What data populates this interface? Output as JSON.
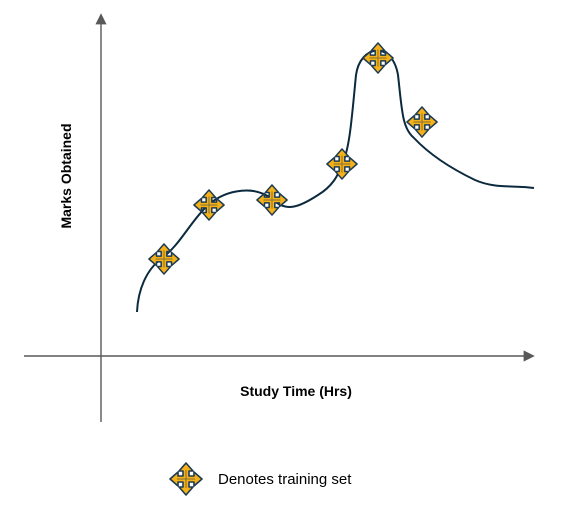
{
  "diagram": {
    "x_axis_label": "Study Time (Hrs)",
    "y_axis_label": "Marks Obtained",
    "legend_text": "Denotes training set",
    "colors": {
      "axis": "#595959",
      "curve": "#0b2a3e",
      "marker_fill": "#f5b117",
      "marker_outline": "#1d3b52"
    },
    "marker_icon": "four-way-arrow-icon",
    "training_point_count": 6
  }
}
